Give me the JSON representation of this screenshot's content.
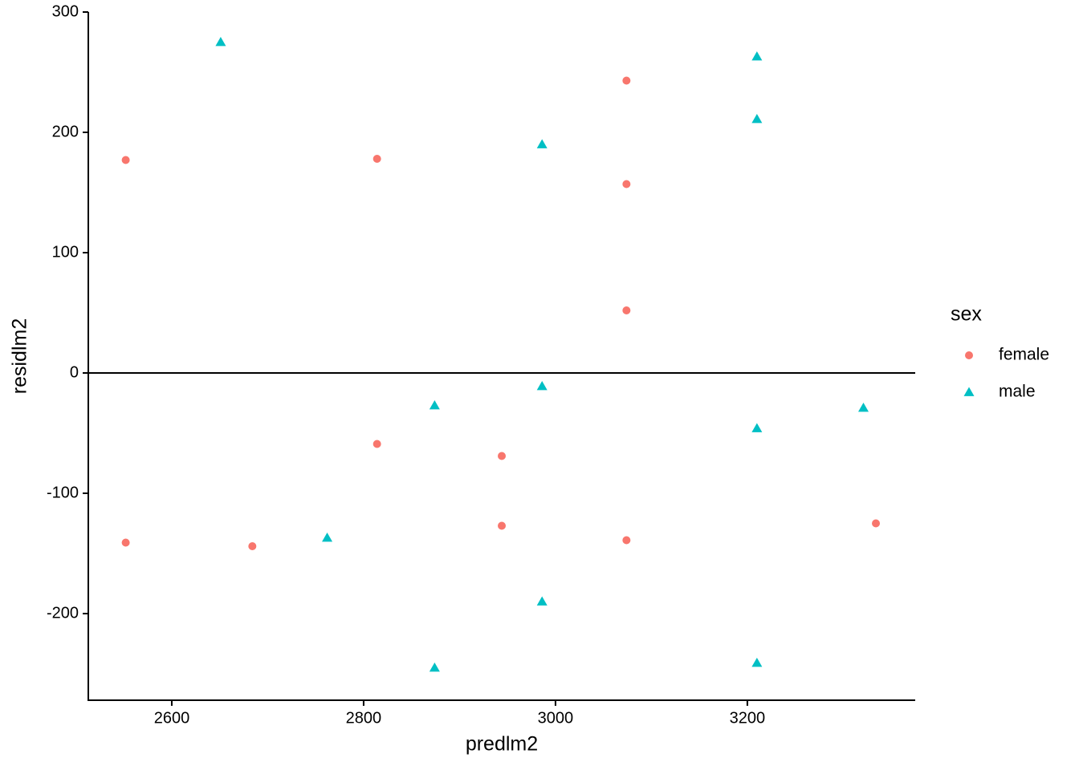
{
  "chart_data": {
    "type": "scatter",
    "x_label": "predlm2",
    "y_label": "residlm2",
    "xlim": [
      2513,
      3375
    ],
    "ylim": [
      -272,
      300
    ],
    "xticks": [
      2600,
      2800,
      3000,
      3200
    ],
    "yticks": [
      -200,
      -100,
      0,
      100,
      200,
      300
    ],
    "hline": 0,
    "legend_title": "sex",
    "series": [
      {
        "name": "female",
        "color": "#F8766D",
        "shape": "circle",
        "x": [
          2552,
          2552,
          2684,
          2814,
          2814,
          2944,
          2944,
          3074,
          3074,
          3074,
          3074,
          3334
        ],
        "values": [
          177,
          -141,
          -144,
          178,
          -59,
          -69,
          -127,
          243,
          157,
          52,
          -139,
          -125
        ]
      },
      {
        "name": "male",
        "color": "#00BFC4",
        "shape": "triangle",
        "x": [
          2651,
          2762,
          2874,
          2874,
          2986,
          2986,
          2986,
          3210,
          3210,
          3210,
          3210,
          3321
        ],
        "values": [
          275,
          -137,
          -27,
          -245,
          190,
          -11,
          -190,
          263,
          211,
          -46,
          -241,
          -29
        ]
      }
    ]
  }
}
